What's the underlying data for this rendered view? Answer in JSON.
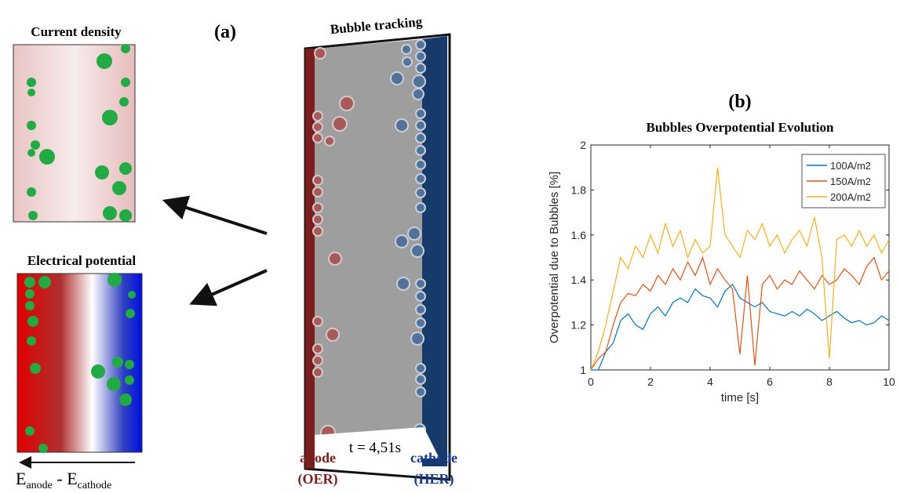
{
  "panel_a": {
    "label": "(a)",
    "current_density_title": "Current density",
    "potential_title": "Electrical potential",
    "tracking_title": "Bubble tracking",
    "time_label": "t = 4,51s",
    "anode": "anode",
    "anode_reaction": "(OER)",
    "cathode": "cathode",
    "cathode_reaction": "(HER)",
    "field_label": [
      "E",
      "anode",
      " - E",
      "cathode"
    ]
  },
  "chart_data": {
    "type": "line",
    "panel_label": "(b)",
    "title": "Bubbles Overpotential Evolution",
    "xlabel": "time [s]",
    "ylabel": "Overpotential due to Bubbles [%]",
    "xlim": [
      0,
      10
    ],
    "ylim": [
      1,
      2
    ],
    "xticks": [
      0,
      2,
      4,
      6,
      8,
      10
    ],
    "yticks": [
      1,
      1.2,
      1.4,
      1.6,
      1.8,
      2
    ],
    "legend": "top-right",
    "x": [
      0,
      0.25,
      0.5,
      0.75,
      1,
      1.25,
      1.5,
      1.75,
      2,
      2.25,
      2.5,
      2.75,
      3,
      3.25,
      3.5,
      3.75,
      4,
      4.25,
      4.5,
      4.75,
      5,
      5.25,
      5.5,
      5.75,
      6,
      6.25,
      6.5,
      6.75,
      7,
      7.25,
      7.5,
      7.75,
      8,
      8.25,
      8.5,
      8.75,
      9,
      9.25,
      9.5,
      9.75,
      10
    ],
    "series": [
      {
        "name": "100A/m2",
        "color": "#0072BD",
        "values": [
          1.0,
          1.0,
          1.08,
          1.12,
          1.22,
          1.25,
          1.2,
          1.18,
          1.25,
          1.28,
          1.24,
          1.3,
          1.32,
          1.3,
          1.36,
          1.33,
          1.32,
          1.28,
          1.35,
          1.38,
          1.32,
          1.3,
          1.28,
          1.3,
          1.26,
          1.25,
          1.24,
          1.26,
          1.24,
          1.27,
          1.25,
          1.22,
          1.24,
          1.26,
          1.23,
          1.21,
          1.22,
          1.2,
          1.21,
          1.24,
          1.22
        ]
      },
      {
        "name": "150A/m2",
        "color": "#D95319",
        "values": [
          1.0,
          1.05,
          1.08,
          1.2,
          1.3,
          1.34,
          1.33,
          1.38,
          1.35,
          1.42,
          1.38,
          1.45,
          1.4,
          1.48,
          1.42,
          1.5,
          1.38,
          1.45,
          1.4,
          1.36,
          1.07,
          1.42,
          1.02,
          1.38,
          1.42,
          1.36,
          1.4,
          1.38,
          1.44,
          1.4,
          1.36,
          1.42,
          1.38,
          1.4,
          1.45,
          1.42,
          1.38,
          1.46,
          1.5,
          1.4,
          1.44
        ]
      },
      {
        "name": "200A/m2",
        "color": "#EDB120",
        "values": [
          1.0,
          1.08,
          1.2,
          1.35,
          1.5,
          1.45,
          1.55,
          1.5,
          1.6,
          1.52,
          1.65,
          1.55,
          1.62,
          1.5,
          1.58,
          1.52,
          1.55,
          1.9,
          1.6,
          1.55,
          1.5,
          1.62,
          1.58,
          1.65,
          1.55,
          1.6,
          1.52,
          1.58,
          1.62,
          1.55,
          1.68,
          1.5,
          1.05,
          1.58,
          1.6,
          1.55,
          1.62,
          1.55,
          1.6,
          1.52,
          1.58
        ]
      }
    ]
  }
}
